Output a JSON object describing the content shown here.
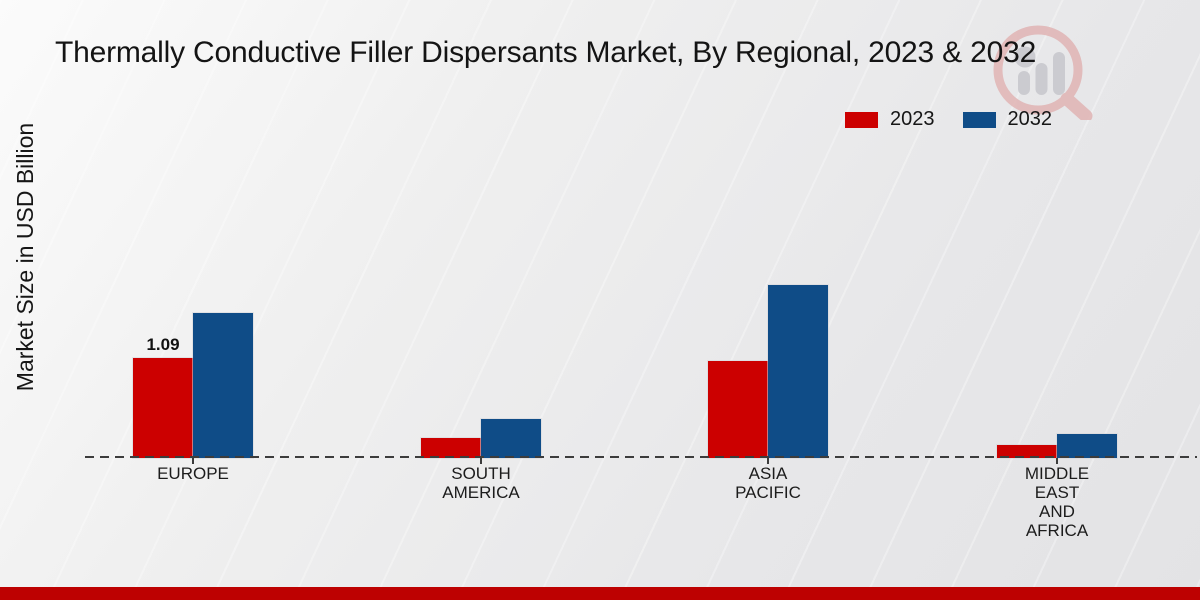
{
  "chart_data": {
    "type": "bar",
    "title": "Thermally Conductive Filler Dispersants Market, By Regional, 2023 & 2032",
    "ylabel": "Market Size in USD Billion",
    "categories": [
      "EUROPE",
      "SOUTH AMERICA",
      "ASIA PACIFIC",
      "MIDDLE EAST AND AFRICA"
    ],
    "category_label_lines": [
      "EUROPE",
      "SOUTH\nAMERICA",
      "ASIA\nPACIFIC",
      "MIDDLE\nEAST\nAND\nAFRICA"
    ],
    "series": [
      {
        "name": "2023",
        "color": "#cc0000",
        "values": [
          1.09,
          0.22,
          1.06,
          0.14
        ]
      },
      {
        "name": "2032",
        "color": "#0f4c87",
        "values": [
          1.58,
          0.43,
          1.89,
          0.26
        ]
      }
    ],
    "value_labels": [
      {
        "category_index": 0,
        "series_index": 0,
        "text": "1.09"
      }
    ],
    "ylim": [
      0,
      2.0
    ],
    "grid": false,
    "baseline_style": "dashed",
    "legend_position": "top-right"
  },
  "colors": {
    "bar_2023": "#cc0000",
    "bar_2032": "#0f4c87",
    "footer_band": "#bd0101",
    "baseline": "#3c3c3c",
    "logo_ring": "#e0b4b4",
    "logo_bars": "#c9c9ce"
  },
  "footer": {
    "present": true
  }
}
